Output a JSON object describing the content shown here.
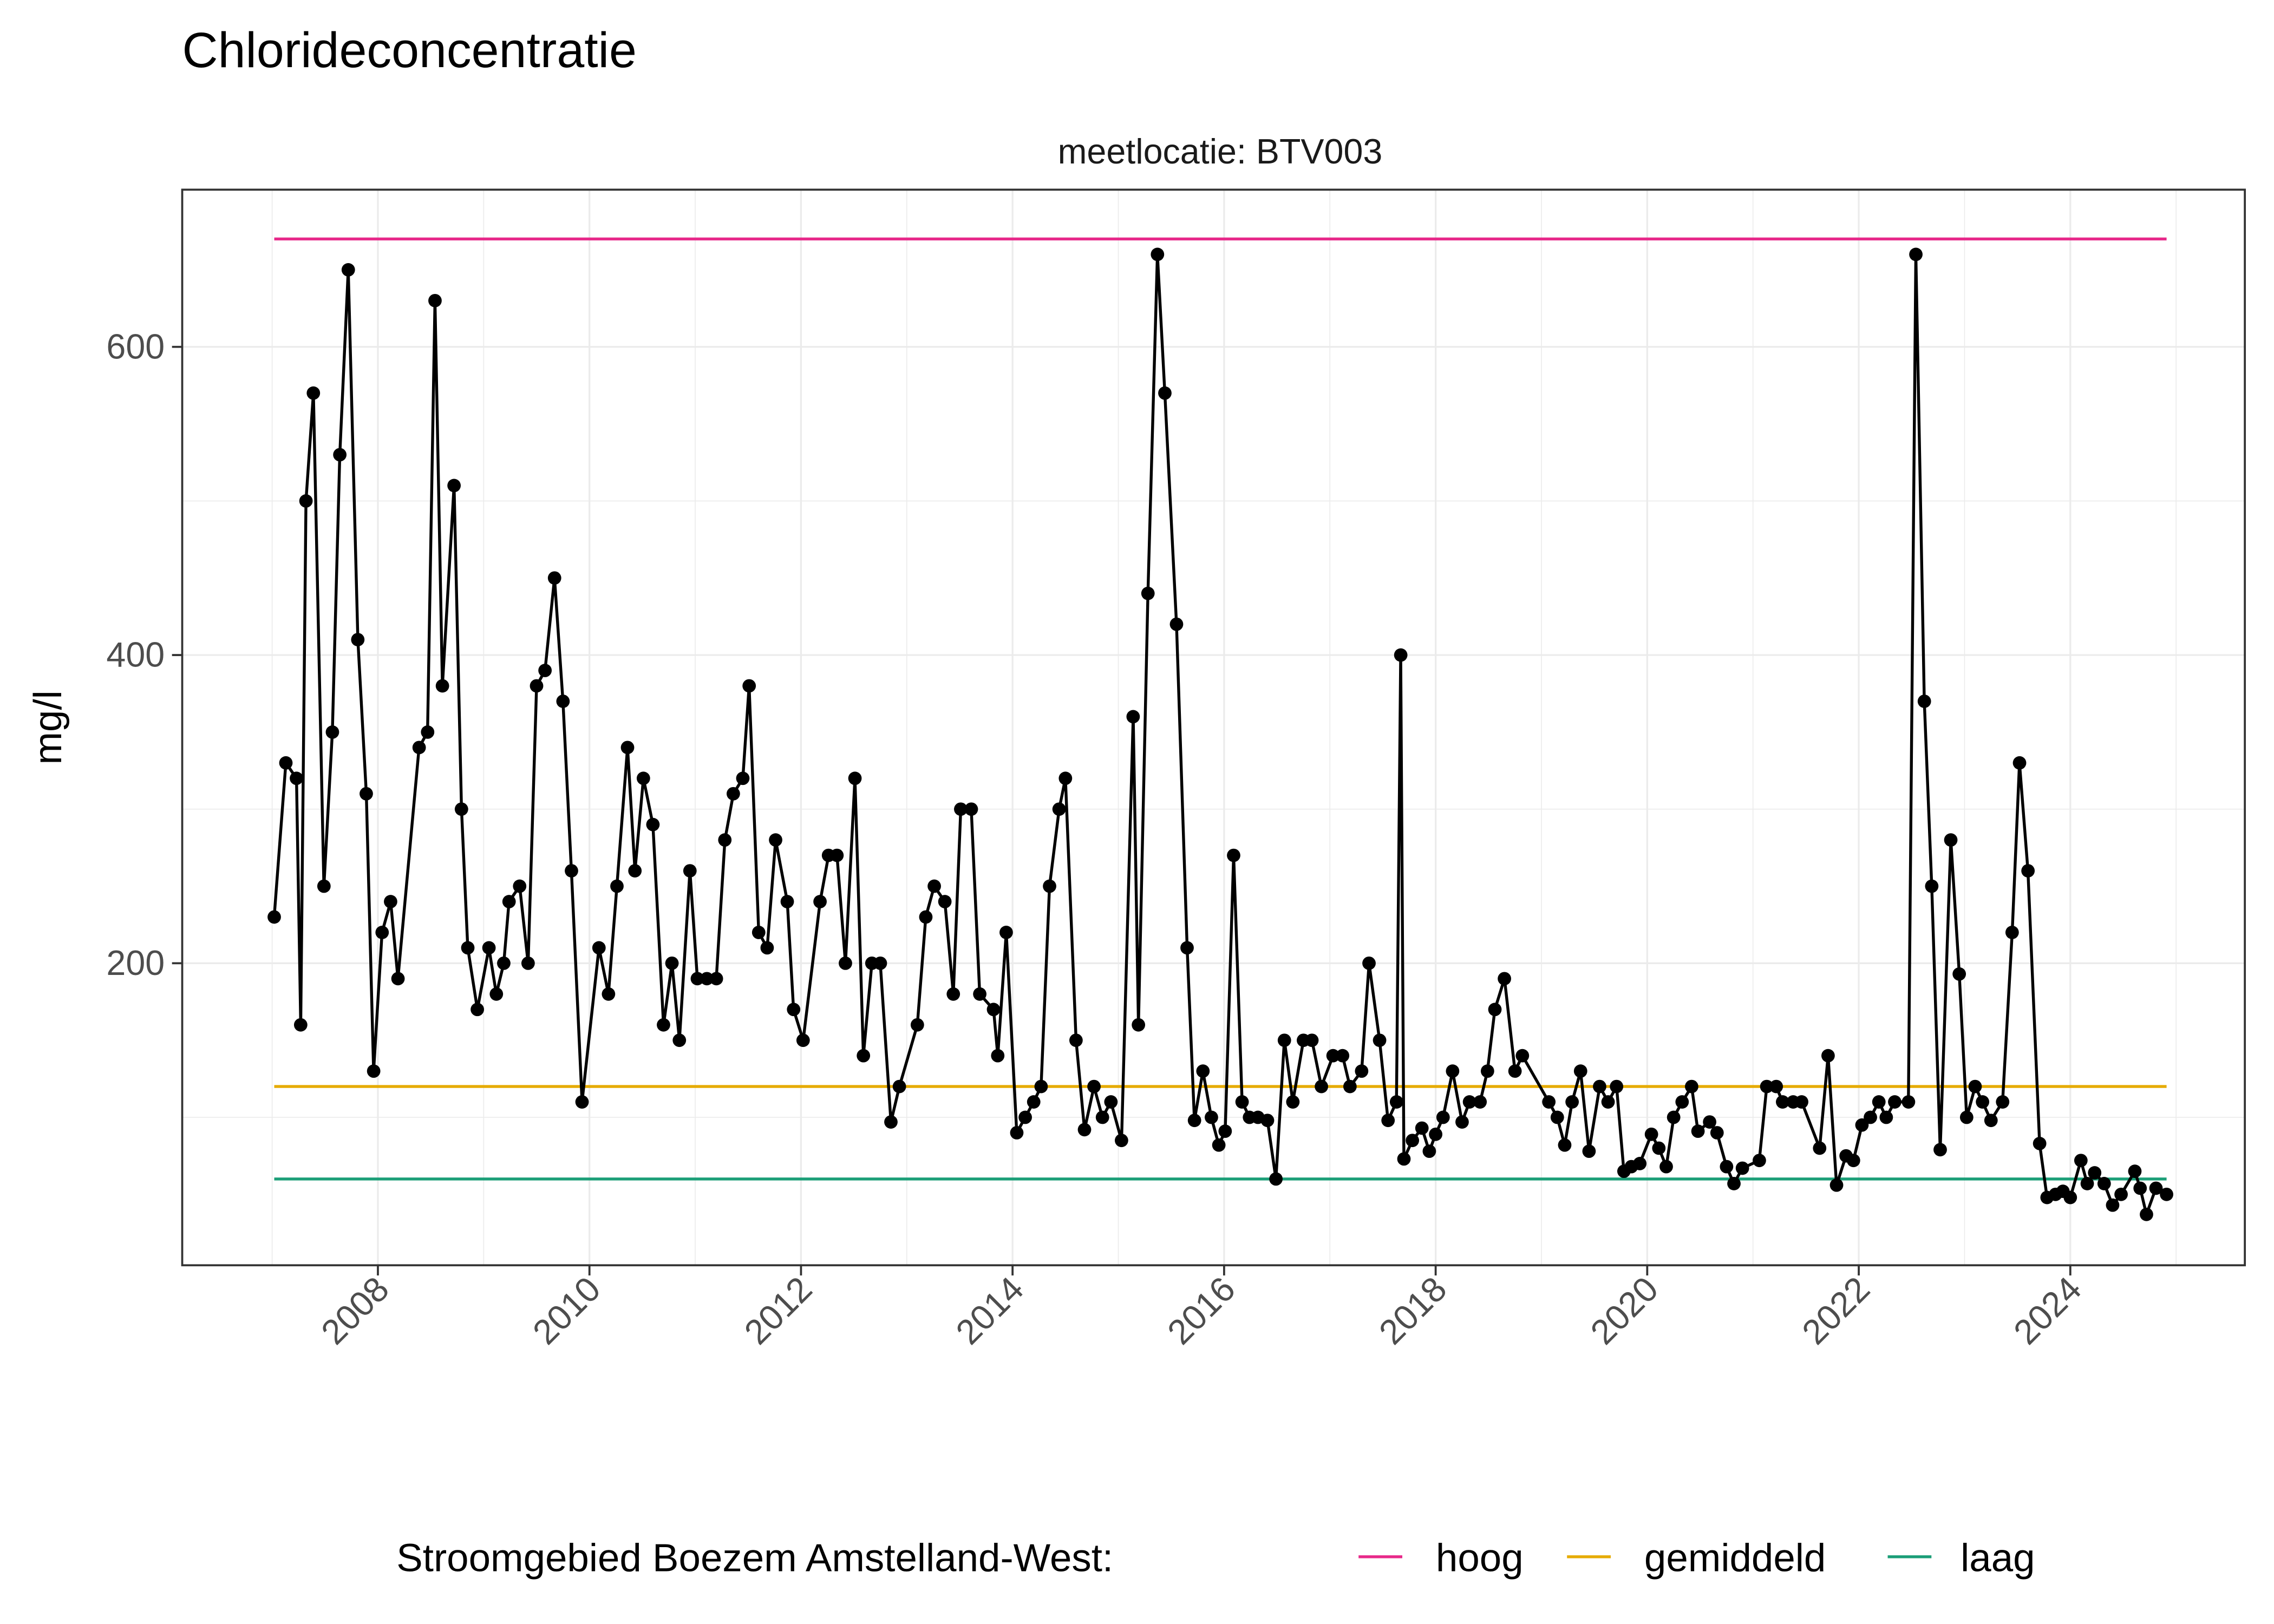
{
  "chart_data": {
    "type": "line",
    "title": "Chlorideconcentratie",
    "subtitle": "meetlocatie: BTV003",
    "xlabel": "",
    "ylabel": "mg/l",
    "xlim": [
      2006.15,
      2025.65
    ],
    "ylim": [
      4,
      702
    ],
    "x_major_ticks": [
      2008,
      2010,
      2012,
      2014,
      2016,
      2018,
      2020,
      2022,
      2024
    ],
    "x_tick_labels": [
      "2008",
      "2010",
      "2012",
      "2014",
      "2016",
      "2018",
      "2020",
      "2022",
      "2024"
    ],
    "y_major_ticks": [
      200,
      400,
      600
    ],
    "y_tick_labels": [
      "200",
      "400",
      "600"
    ],
    "y_minor_ticks": [
      100,
      300,
      500
    ],
    "x_minor_ticks": [
      2007,
      2009,
      2011,
      2013,
      2015,
      2017,
      2019,
      2021,
      2023,
      2025
    ],
    "grid": true,
    "legend_position": "bottom",
    "legend_title": "Stroomgebied Boezem Amstelland-West:",
    "reference_lines": [
      {
        "name": "hoog",
        "value": 670,
        "color": "#e7298a",
        "x_range": [
          2007.02,
          2024.91
        ]
      },
      {
        "name": "gemiddeld",
        "value": 120,
        "color": "#e6ab02",
        "x_range": [
          2007.02,
          2024.91
        ]
      },
      {
        "name": "laag",
        "value": 60,
        "color": "#1b9e77",
        "x_range": [
          2007.02,
          2024.91
        ]
      }
    ],
    "series_color": "#000000",
    "x": [
      2007.02,
      2007.13,
      2007.23,
      2007.27,
      2007.32,
      2007.39,
      2007.49,
      2007.57,
      2007.64,
      2007.72,
      2007.81,
      2007.89,
      2007.96,
      2008.04,
      2008.12,
      2008.19,
      2008.39,
      2008.47,
      2008.54,
      2008.61,
      2008.72,
      2008.79,
      2008.85,
      2008.94,
      2009.05,
      2009.12,
      2009.19,
      2009.24,
      2009.34,
      2009.42,
      2009.5,
      2009.58,
      2009.67,
      2009.75,
      2009.83,
      2009.93,
      2010.09,
      2010.18,
      2010.26,
      2010.36,
      2010.43,
      2010.51,
      2010.6,
      2010.7,
      2010.78,
      2010.85,
      2010.95,
      2011.02,
      2011.11,
      2011.2,
      2011.28,
      2011.36,
      2011.45,
      2011.51,
      2011.6,
      2011.68,
      2011.76,
      2011.87,
      2011.93,
      2012.02,
      2012.18,
      2012.26,
      2012.34,
      2012.42,
      2012.51,
      2012.59,
      2012.67,
      2012.75,
      2012.85,
      2012.93,
      2013.1,
      2013.18,
      2013.26,
      2013.36,
      2013.44,
      2013.51,
      2013.61,
      2013.69,
      2013.82,
      2013.86,
      2013.94,
      2014.04,
      2014.12,
      2014.2,
      2014.27,
      2014.35,
      2014.44,
      2014.5,
      2014.6,
      2014.68,
      2014.77,
      2014.85,
      2014.93,
      2015.03,
      2015.14,
      2015.19,
      2015.28,
      2015.37,
      2015.44,
      2015.55,
      2015.65,
      2015.72,
      2015.8,
      2015.88,
      2015.95,
      2016.01,
      2016.09,
      2016.17,
      2016.24,
      2016.32,
      2016.41,
      2016.49,
      2016.57,
      2016.65,
      2016.75,
      2016.83,
      2016.92,
      2017.03,
      2017.12,
      2017.19,
      2017.3,
      2017.37,
      2017.47,
      2017.55,
      2017.63,
      2017.67,
      2017.7,
      2017.78,
      2017.87,
      2017.94,
      2018.0,
      2018.07,
      2018.16,
      2018.25,
      2018.32,
      2018.42,
      2018.49,
      2018.56,
      2018.65,
      2018.75,
      2018.82,
      2019.07,
      2019.15,
      2019.22,
      2019.29,
      2019.37,
      2019.45,
      2019.55,
      2019.63,
      2019.71,
      2019.78,
      2019.85,
      2019.93,
      2020.04,
      2020.11,
      2020.18,
      2020.25,
      2020.33,
      2020.42,
      2020.48,
      2020.59,
      2020.66,
      2020.75,
      2020.82,
      2020.9,
      2021.06,
      2021.13,
      2021.22,
      2021.28,
      2021.38,
      2021.46,
      2021.63,
      2021.71,
      2021.79,
      2021.88,
      2021.95,
      2022.03,
      2022.11,
      2022.19,
      2022.26,
      2022.34,
      2022.47,
      2022.54,
      2022.62,
      2022.69,
      2022.77,
      2022.87,
      2022.95,
      2023.02,
      2023.1,
      2023.17,
      2023.25,
      2023.36,
      2023.45,
      2023.52,
      2023.6,
      2023.71,
      2023.78,
      2023.86,
      2023.93,
      2024.0,
      2024.1,
      2024.16,
      2024.23,
      2024.32,
      2024.4,
      2024.48,
      2024.61,
      2024.66,
      2024.72,
      2024.81,
      2024.91
    ],
    "y": [
      230,
      330,
      320,
      160,
      500,
      570,
      250,
      350,
      530,
      650,
      410,
      310,
      130,
      220,
      240,
      190,
      340,
      350,
      630,
      380,
      510,
      300,
      210,
      170,
      210,
      180,
      200,
      240,
      250,
      200,
      380,
      390,
      450,
      370,
      260,
      110,
      210,
      180,
      250,
      340,
      260,
      320,
      290,
      160,
      200,
      150,
      260,
      190,
      190,
      190,
      280,
      310,
      320,
      380,
      220,
      210,
      280,
      240,
      170,
      150,
      240,
      270,
      270,
      200,
      320,
      140,
      200,
      200,
      97,
      120,
      160,
      230,
      250,
      240,
      180,
      300,
      300,
      180,
      170,
      140,
      220,
      90,
      100,
      110,
      120,
      250,
      300,
      320,
      150,
      92,
      120,
      100,
      110,
      85,
      360,
      160,
      440,
      660,
      570,
      420,
      210,
      98,
      130,
      100,
      82,
      91,
      270,
      110,
      100,
      100,
      98,
      60,
      150,
      110,
      150,
      150,
      120,
      140,
      140,
      120,
      130,
      200,
      150,
      98,
      110,
      400,
      73,
      85,
      93,
      78,
      89,
      100,
      130,
      97,
      110,
      110,
      130,
      170,
      190,
      130,
      140,
      110,
      100,
      82,
      110,
      130,
      78,
      120,
      110,
      120,
      65,
      68,
      70,
      89,
      80,
      68,
      100,
      110,
      120,
      91,
      97,
      90,
      68,
      57,
      67,
      72,
      120,
      120,
      110,
      110,
      110,
      80,
      140,
      56,
      75,
      72,
      95,
      100,
      110,
      100,
      110,
      110,
      660,
      370,
      250,
      79,
      280,
      193,
      100,
      120,
      110,
      98,
      110,
      220,
      330,
      260,
      83,
      48,
      50,
      52,
      48,
      72,
      57,
      64,
      57,
      43,
      50,
      65,
      54,
      37,
      54,
      50
    ]
  }
}
